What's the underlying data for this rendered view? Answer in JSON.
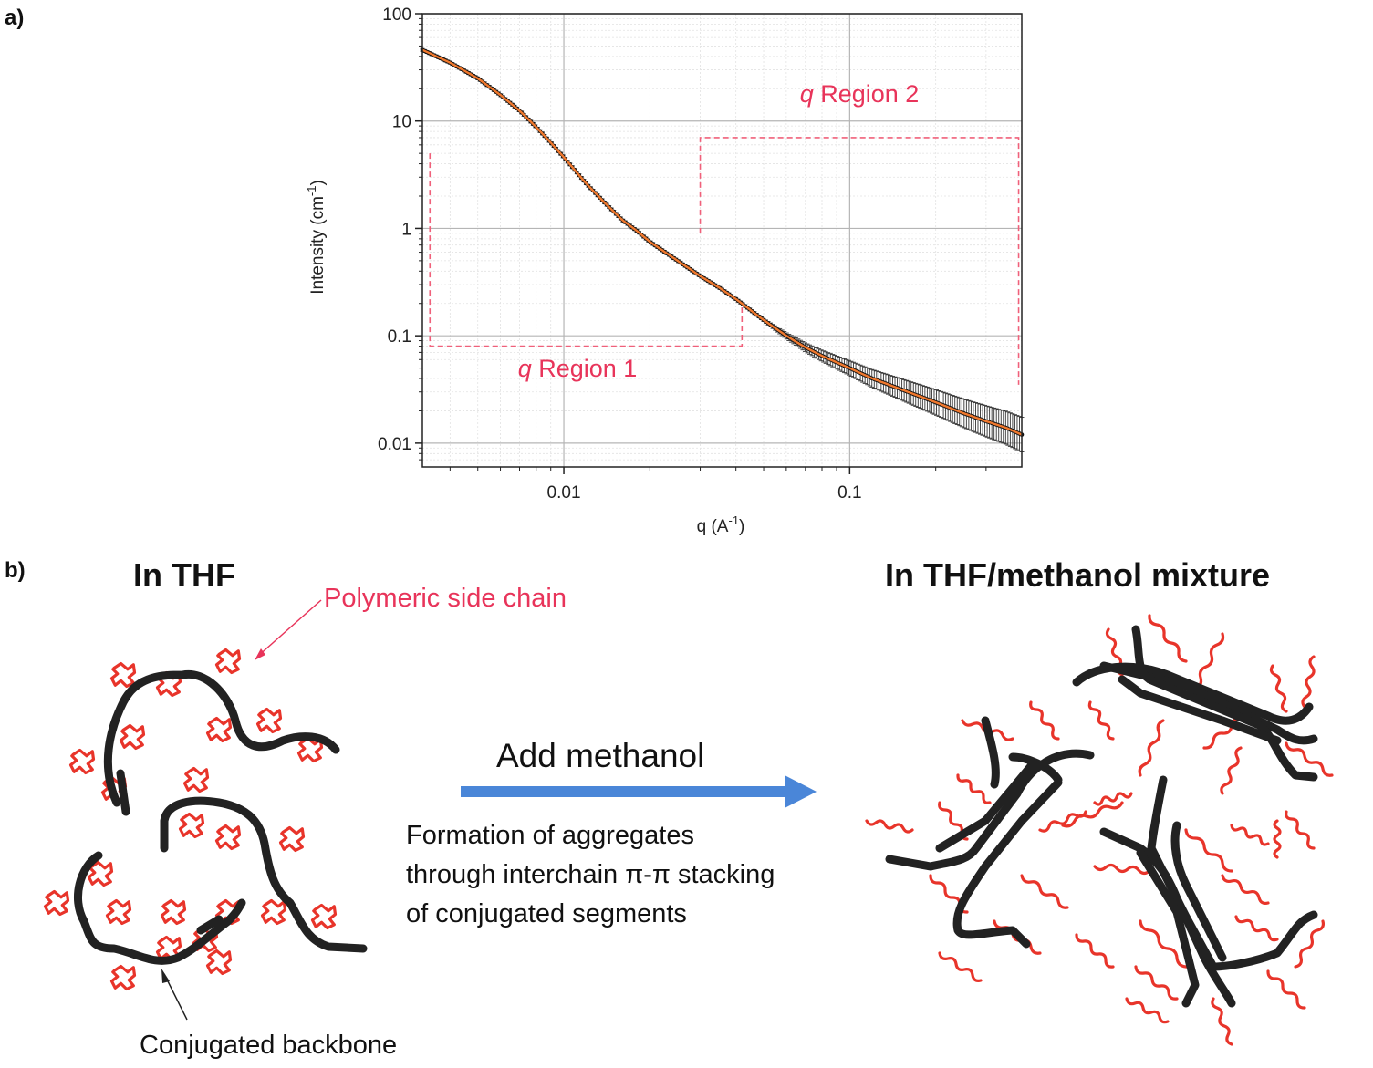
{
  "panel_a": {
    "label": "a)"
  },
  "panel_b": {
    "label": "b)"
  },
  "chart_data": {
    "type": "scatter",
    "xlabel_main": "q (A",
    "xlabel_sup": "-1",
    "xlabel_end": ")",
    "ylabel_main": "Intensity (cm",
    "ylabel_sup": "-1",
    "ylabel_end": ")",
    "xscale": "log",
    "yscale": "log",
    "xlim": [
      0.0032,
      0.4
    ],
    "ylim": [
      0.006,
      100
    ],
    "x_ticks": [
      {
        "value": 0.01,
        "label": "0.01"
      },
      {
        "value": 0.1,
        "label": "0.1"
      }
    ],
    "y_ticks": [
      {
        "value": 0.01,
        "label": "0.01"
      },
      {
        "value": 0.1,
        "label": "0.1"
      },
      {
        "value": 1,
        "label": "1"
      },
      {
        "value": 10,
        "label": "10"
      },
      {
        "value": 100,
        "label": "100"
      }
    ],
    "grid": true,
    "series": [
      {
        "kind": "data-with-errorbars",
        "color": "#111111",
        "x": [
          0.0032,
          0.004,
          0.005,
          0.006,
          0.007,
          0.008,
          0.009,
          0.01,
          0.012,
          0.014,
          0.016,
          0.018,
          0.02,
          0.025,
          0.03,
          0.035,
          0.04,
          0.05,
          0.06,
          0.07,
          0.08,
          0.1,
          0.12,
          0.15,
          0.2,
          0.25,
          0.3,
          0.35,
          0.4
        ],
        "y": [
          46,
          35,
          25,
          17.5,
          12.5,
          8.8,
          6.3,
          4.6,
          2.6,
          1.7,
          1.2,
          0.95,
          0.75,
          0.5,
          0.36,
          0.28,
          0.22,
          0.14,
          0.1,
          0.078,
          0.065,
          0.05,
          0.04,
          0.032,
          0.024,
          0.019,
          0.016,
          0.014,
          0.012
        ]
      },
      {
        "kind": "fit",
        "color": "#f0782d",
        "x": [
          0.0032,
          0.004,
          0.005,
          0.006,
          0.007,
          0.008,
          0.009,
          0.01,
          0.012,
          0.014,
          0.016,
          0.018,
          0.02,
          0.025,
          0.03,
          0.035,
          0.04,
          0.05,
          0.06,
          0.07,
          0.08,
          0.1,
          0.12,
          0.15,
          0.2,
          0.25,
          0.3,
          0.35,
          0.4
        ],
        "y": [
          46,
          35,
          25,
          17.5,
          12.5,
          8.8,
          6.3,
          4.6,
          2.6,
          1.7,
          1.2,
          0.95,
          0.75,
          0.5,
          0.36,
          0.28,
          0.22,
          0.14,
          0.1,
          0.078,
          0.065,
          0.05,
          0.04,
          0.032,
          0.024,
          0.019,
          0.016,
          0.014,
          0.012
        ]
      }
    ],
    "regions": [
      {
        "q": "q",
        "label": " Region 1",
        "x_range": [
          0.0034,
          0.042
        ],
        "y_bottom": 0.08,
        "y_top": 5
      },
      {
        "q": "q",
        "label": " Region 2",
        "x_range": [
          0.03,
          0.39
        ],
        "y_bottom": 0.9,
        "y_top": 7
      }
    ],
    "region_color": "#f0607a"
  },
  "diagram": {
    "left_title": "In THF",
    "right_title": "In THF/methanol mixture",
    "side_chain_label": "Polymeric side chain",
    "backbone_label": "Conjugated  backbone",
    "arrow_label": "Add methanol",
    "description": [
      "Formation of aggregates",
      "through  interchain  π-π  stacking",
      "of conjugated  segments"
    ],
    "arrow_color": "#4a86d8",
    "side_chain_color": "#e8342a",
    "backbone_color": "#222222"
  }
}
